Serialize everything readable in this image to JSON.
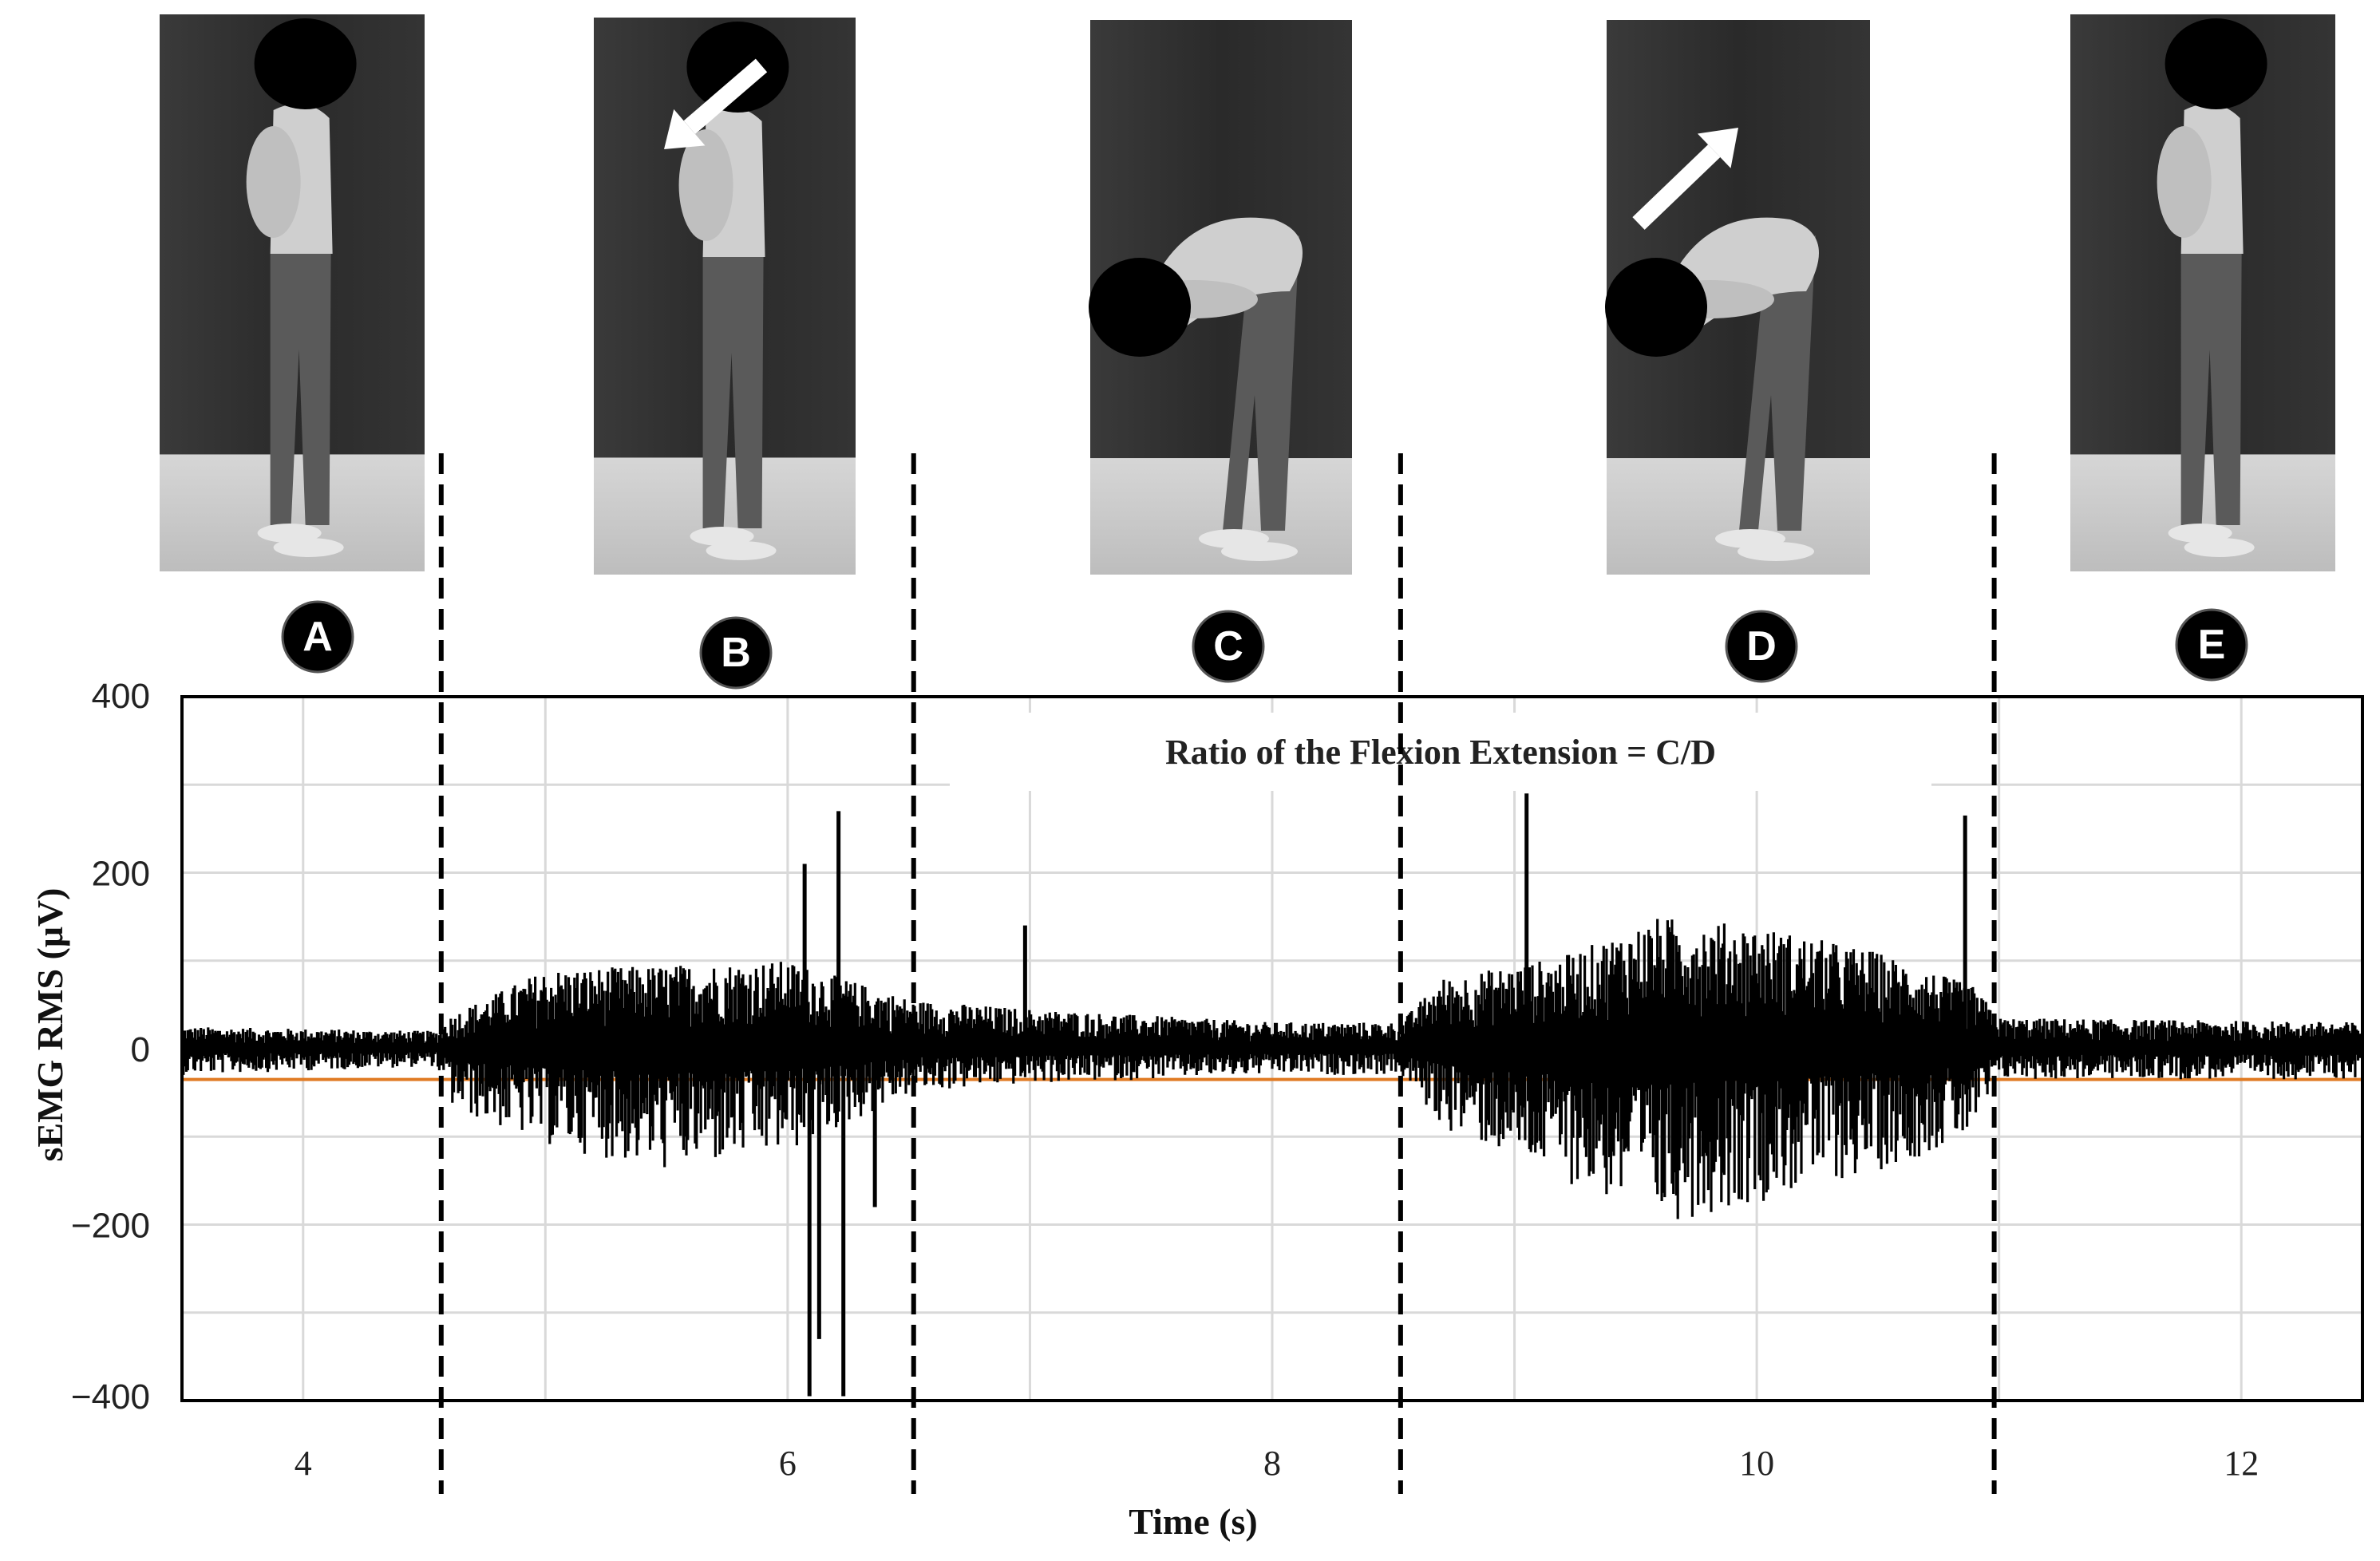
{
  "figure": {
    "phase_labels": [
      "A",
      "B",
      "C",
      "D",
      "E"
    ],
    "photos": [
      {
        "posture": "standing upright",
        "arrow": "none"
      },
      {
        "posture": "standing upright",
        "arrow": "down-left (flexion)"
      },
      {
        "posture": "full trunk flexion",
        "arrow": "none"
      },
      {
        "posture": "full trunk flexion",
        "arrow": "up-right (extension)"
      },
      {
        "posture": "standing upright",
        "arrow": "none"
      }
    ],
    "annotation": "Ratio of the Flexion Extension = C/D"
  },
  "chart_data": {
    "type": "line",
    "xlabel": "Time (s)",
    "ylabel": "sEMG RMS (μV)",
    "xlim": [
      3.5,
      12.5
    ],
    "ylim": [
      -400,
      400
    ],
    "x_ticks": [
      4,
      6,
      8,
      10,
      12
    ],
    "x_tick_labels": [
      "4",
      "6",
      "8",
      "10",
      "12"
    ],
    "y_ticks": [
      -400,
      -200,
      0,
      200,
      400
    ],
    "y_tick_labels": [
      "−400",
      "−200",
      "0",
      "200",
      "400"
    ],
    "grid": true,
    "phase_boundaries_s": [
      4.57,
      6.52,
      8.53,
      10.98
    ],
    "series": [
      {
        "role": "sEMG signal",
        "color": "#000000",
        "envelope": [
          {
            "x": 3.5,
            "up": 25,
            "down": -30
          },
          {
            "x": 4.55,
            "up": 20,
            "down": -20
          },
          {
            "x": 4.62,
            "up": 40,
            "down": -70
          },
          {
            "x": 5.0,
            "up": 90,
            "down": -110
          },
          {
            "x": 5.5,
            "up": 95,
            "down": -140
          },
          {
            "x": 6.0,
            "up": 100,
            "down": -120
          },
          {
            "x": 6.52,
            "up": 55,
            "down": -50
          },
          {
            "x": 7.0,
            "up": 45,
            "down": -40
          },
          {
            "x": 8.0,
            "up": 30,
            "down": -30
          },
          {
            "x": 8.53,
            "up": 30,
            "down": -30
          },
          {
            "x": 8.7,
            "up": 80,
            "down": -90
          },
          {
            "x": 9.2,
            "up": 105,
            "down": -150
          },
          {
            "x": 9.6,
            "up": 150,
            "down": -200
          },
          {
            "x": 10.0,
            "up": 140,
            "down": -175
          },
          {
            "x": 10.5,
            "up": 110,
            "down": -140
          },
          {
            "x": 10.9,
            "up": 70,
            "down": -100
          },
          {
            "x": 11.0,
            "up": 35,
            "down": -35
          },
          {
            "x": 12.5,
            "up": 30,
            "down": -35
          }
        ],
        "spikes": [
          {
            "x": 6.07,
            "y": 210
          },
          {
            "x": 6.09,
            "y": -395
          },
          {
            "x": 6.13,
            "y": -330
          },
          {
            "x": 6.21,
            "y": 270
          },
          {
            "x": 6.23,
            "y": -395
          },
          {
            "x": 6.36,
            "y": -180
          },
          {
            "x": 6.98,
            "y": 140
          },
          {
            "x": 9.05,
            "y": 290
          },
          {
            "x": 10.86,
            "y": 265
          }
        ]
      },
      {
        "role": "baseline",
        "color": "#e07b24",
        "value": -35
      }
    ]
  },
  "colors": {
    "signal": "#000000",
    "baseline": "#e07b24",
    "grid": "#d9d9d9",
    "photo_bg": "#2e2e2e",
    "floor": "#cfcfcf"
  }
}
